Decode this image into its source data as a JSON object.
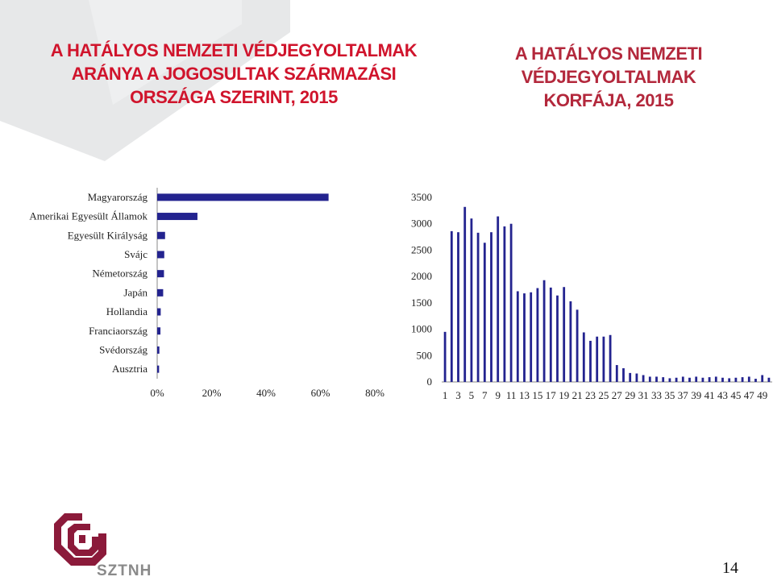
{
  "title_left": {
    "line1": "A HATÁLYOS NEMZETI VÉDJEGYOLTALMAK",
    "line2": "ARÁNYA A JOGOSULTAK SZÁRMAZÁSI",
    "line3": "ORSZÁGA SZERINT, 2015"
  },
  "title_right": {
    "line1": "A HATÁLYOS NEMZETI",
    "line2": "VÉDJEGYOLTALMAK",
    "line3": "KORFÁJA, 2015"
  },
  "logo": {
    "text": "SZTNH",
    "icon": "sztnh-logo-icon"
  },
  "page_number": "14",
  "colors": {
    "bar": "#23238f",
    "title_left": "#d0142c",
    "title_right": "#b3283c",
    "logo_red": "#8b1a3a",
    "deco_gray": "#e7e8e9"
  },
  "chart_data": [
    {
      "type": "bar",
      "orientation": "horizontal",
      "categories": [
        "Magyarország",
        "Amerikai Egyesült Államok",
        "Egyesült Királyság",
        "Svájc",
        "Németország",
        "Japán",
        "Hollandia",
        "Franciaország",
        "Svédország",
        "Ausztria"
      ],
      "values": [
        63,
        14.8,
        2.9,
        2.6,
        2.5,
        2.2,
        1.3,
        1.2,
        0.8,
        0.7
      ],
      "xlim": [
        0,
        80
      ],
      "xticks": [
        "0%",
        "20%",
        "40%",
        "60%",
        "80%"
      ],
      "grid": false
    },
    {
      "type": "bar",
      "orientation": "vertical",
      "x": [
        1,
        2,
        3,
        4,
        5,
        6,
        7,
        8,
        9,
        10,
        11,
        12,
        13,
        14,
        15,
        16,
        17,
        18,
        19,
        20,
        21,
        22,
        23,
        24,
        25,
        26,
        27,
        28,
        29,
        30,
        31,
        32,
        33,
        34,
        35,
        36,
        37,
        38,
        39,
        40,
        41,
        42,
        43,
        44,
        45,
        46,
        47,
        48,
        49,
        50
      ],
      "values": [
        950,
        2860,
        2840,
        3320,
        3100,
        2830,
        2640,
        2840,
        3140,
        2950,
        3000,
        1720,
        1680,
        1700,
        1780,
        1930,
        1790,
        1640,
        1800,
        1530,
        1370,
        940,
        780,
        860,
        860,
        890,
        320,
        260,
        170,
        160,
        130,
        100,
        100,
        90,
        70,
        80,
        100,
        80,
        100,
        80,
        90,
        100,
        80,
        70,
        80,
        90,
        100,
        60,
        130,
        80
      ],
      "ylim": [
        0,
        3500
      ],
      "yticks": [
        "0",
        "500",
        "1000",
        "1500",
        "2000",
        "2500",
        "3000",
        "3500"
      ],
      "xtick_labels": [
        "1",
        "3",
        "5",
        "7",
        "9",
        "11",
        "13",
        "15",
        "17",
        "19",
        "21",
        "23",
        "25",
        "27",
        "29",
        "31",
        "33",
        "35",
        "37",
        "39",
        "41",
        "43",
        "45",
        "47",
        "49"
      ],
      "grid": false
    }
  ]
}
